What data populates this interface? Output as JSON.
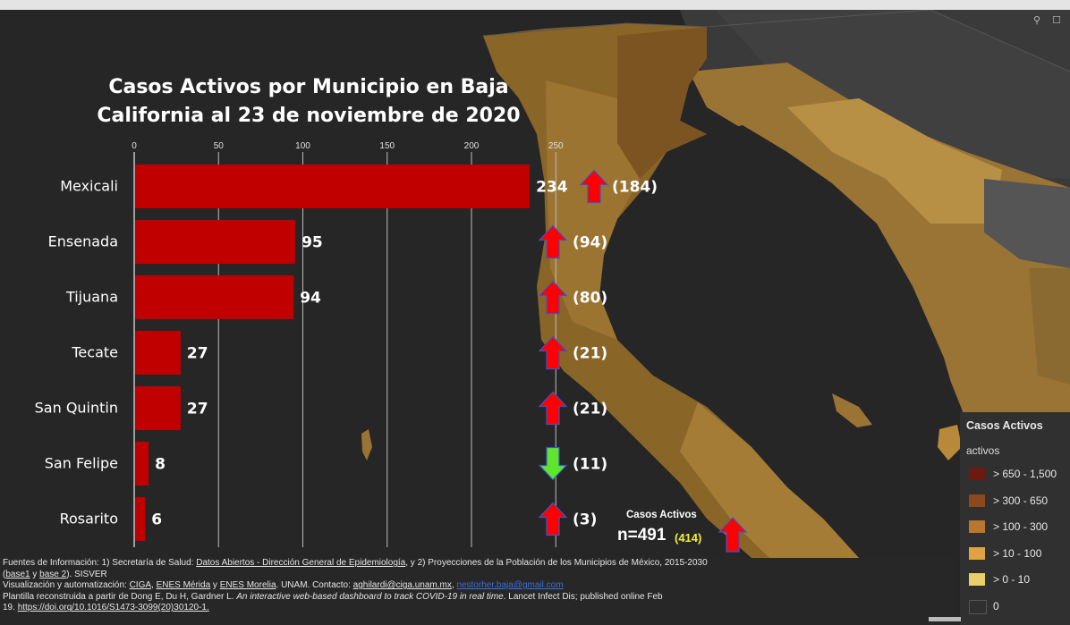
{
  "chart_data": {
    "type": "bar",
    "orientation": "horizontal",
    "title": "Casos Activos por Municipio en Baja California al 23 de noviembre de 2020",
    "categories": [
      "Mexicali",
      "Ensenada",
      "Tijuana",
      "Tecate",
      "San Quintin",
      "San Felipe",
      "Rosarito"
    ],
    "values": [
      234,
      95,
      94,
      27,
      27,
      8,
      6
    ],
    "previous": [
      "(184)",
      "(94)",
      "(80)",
      "(21)",
      "(21)",
      "(11)",
      "(3)"
    ],
    "trend": [
      "up",
      "up",
      "up",
      "up",
      "up",
      "down",
      "up"
    ],
    "xticks": [
      0,
      50,
      100,
      150,
      200,
      250
    ],
    "xlim": [
      0,
      250
    ],
    "grid": true,
    "bar_color": "#c00000",
    "up_color": "#ff0000",
    "down_color": "#5ee62c"
  },
  "summary": {
    "title": "Casos Activos",
    "total": "n=491",
    "previous": "(414)",
    "trend": "up"
  },
  "legend": {
    "title": "Casos Activos",
    "subtitle": "activos",
    "items": [
      {
        "label": "> 650 - 1,500",
        "color": "#6b1a12"
      },
      {
        "label": "> 300 - 650",
        "color": "#8c4a1c"
      },
      {
        "label": "> 100 - 300",
        "color": "#b9762e"
      },
      {
        "label": "> 10 - 100",
        "color": "#dda441"
      },
      {
        "label": "> 0 - 10",
        "color": "#e9cf6a"
      },
      {
        "label": "0",
        "color": "#303030"
      }
    ]
  },
  "map_tools": {
    "search_icon": "search-icon",
    "bookmark_icon": "bookmark-icon"
  },
  "footer": {
    "l1_a": "Fuentes de Información: 1) Secretaría de Salud: ",
    "l1_link": "Datos Abiertos - Dirección General de Epidemiología",
    "l1_b": ", y 2) Proyecciones de la Población de los Municipios de México, 2015-2030",
    "l2_a": "(",
    "l2_link1": "base1",
    "l2_b": " y ",
    "l2_link2": "base 2",
    "l2_c": "). SISVER",
    "l3_a": " Visualización y automatización: ",
    "l3_ciga": "CIGA",
    "l3_sep1": ", ",
    "l3_merida": "ENES Mérida",
    "l3_y": " y ",
    "l3_morelia": "ENES Morelia",
    "l3_b": ". UNAM. Contacto: ",
    "l3_email1": "aghilardi@ciga.unam.mx",
    "l3_sep2": ", ",
    "l3_email2": "nestorher.baja@gmail.com",
    "l4_a": " Plantilla reconstruida a partir de Dong E, Du H, Gardner L. ",
    "l4_italic": "An interactive web-based dashboard to track COVID-19 in real time",
    "l4_b": ". Lancet Infect Dis; published online Feb",
    "l5_a": "19. ",
    "l5_doi": "https://doi.org/10.1016/S1473-3099(20)30120-1."
  }
}
